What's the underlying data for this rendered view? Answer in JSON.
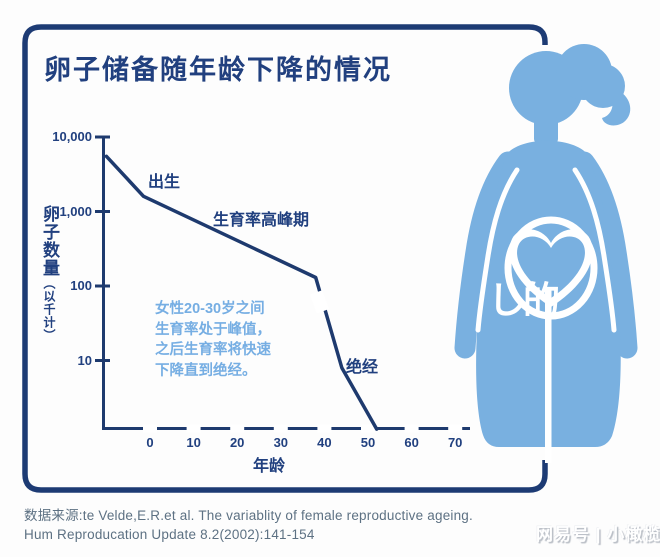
{
  "page": {
    "title": "卵子储备随年龄下降的情况"
  },
  "chart_data": {
    "type": "line",
    "title": "卵子储备随年龄下降的情况",
    "xlabel": "年龄",
    "ylabel": "卵子数量（以千计）",
    "y_scale": "log",
    "grid": false,
    "xlim": [
      -12,
      73
    ],
    "ylim": [
      1,
      10000
    ],
    "x_ticks": [
      0,
      10,
      20,
      30,
      40,
      50,
      60,
      70
    ],
    "y_tick_values": [
      10000,
      1000,
      100,
      10
    ],
    "y_tick_labels": [
      "10,000",
      "1,000",
      "100",
      "10"
    ],
    "series": [
      {
        "name": "卵子数量(以千计)",
        "points": [
          {
            "age": -10,
            "value": 5500
          },
          {
            "age": -1.5,
            "value": 1600
          },
          {
            "age": 38,
            "value": 130
          },
          {
            "age": 44,
            "value": 8
          },
          {
            "age": 52,
            "value": 1.2
          }
        ]
      }
    ],
    "annotations": [
      {
        "text": "出生",
        "age": 0,
        "value": 1600
      },
      {
        "text": "生育率高峰期",
        "age": 20,
        "value": 600
      },
      {
        "text": "绝经",
        "age": 46,
        "value": 25
      },
      {
        "text": "女性20-30岁之间 生育率处于峰值， 之后生育率将快速 下降直到绝经。",
        "age": 15,
        "value": 30
      }
    ]
  },
  "labels": {
    "birth": "出生",
    "peak_fertility": "生育率高峰期",
    "menopause": "绝经",
    "x_axis_title": "年龄",
    "y_axis_title_main": "卵子数量",
    "y_axis_title_sub": "（以千计）"
  },
  "note": {
    "line1": "女性20-30岁之间",
    "line2": "生育率处于峰值，",
    "line3": "之后生育率将快速",
    "line4": "下降直到绝经。"
  },
  "source": {
    "line1": "数据来源:te Velde,E.R.et al. The variablity of female reproductive ageing.",
    "line2": "Hum Reproducation Update 8.2(2002):141-154"
  },
  "watermarks": {
    "figure_overlay": "し的",
    "publisher": "网易号 | 小橄榄"
  },
  "figure": {
    "name": "pregnant-woman-silhouette",
    "heart_icon": "heart"
  },
  "colors": {
    "navy": "#21407f",
    "chart_navy": "#1e3a6e",
    "frame_navy": "#1d3b74",
    "light_blue": "#79b0e0",
    "note_blue": "#76aee3",
    "source_gray": "#5d7183",
    "background": "#fdfdfd"
  }
}
